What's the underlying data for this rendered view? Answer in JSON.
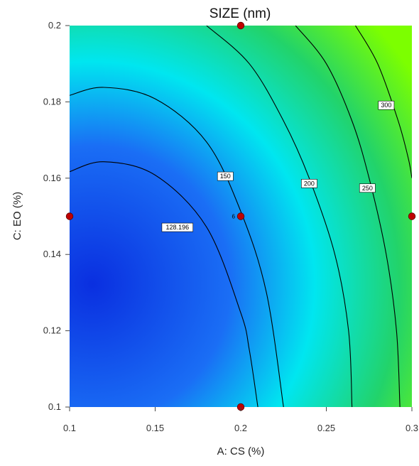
{
  "chart_data": {
    "type": "heatmap",
    "subtype": "contour",
    "title": "SIZE (nm)",
    "xlabel": "A: CS (%)",
    "ylabel": "C: EO (%)",
    "xlim": [
      0.1,
      0.3
    ],
    "ylim": [
      0.1,
      0.2
    ],
    "x_ticks": [
      "0.1",
      "0.15",
      "0.2",
      "0.25",
      "0.3"
    ],
    "y_ticks": [
      "0.1",
      "0.12",
      "0.14",
      "0.16",
      "0.18",
      "0.2"
    ],
    "colormap": [
      "#0a2fe0",
      "#1a6ef5",
      "#00e6f0",
      "#22d36a",
      "#7cff00"
    ],
    "contours": [
      {
        "level": 128.196,
        "label": "128.196",
        "points": [
          [
            0.1,
            0.1617
          ],
          [
            0.12,
            0.1643
          ],
          [
            0.15,
            0.1608
          ],
          [
            0.18,
            0.1472
          ],
          [
            0.2,
            0.1247
          ],
          [
            0.205,
            0.115
          ],
          [
            0.21,
            0.1
          ]
        ]
      },
      {
        "level": 150,
        "label": "150",
        "points": [
          [
            0.1,
            0.1817
          ],
          [
            0.12,
            0.1838
          ],
          [
            0.15,
            0.1808
          ],
          [
            0.18,
            0.1695
          ],
          [
            0.2,
            0.1513
          ],
          [
            0.215,
            0.13
          ],
          [
            0.225,
            0.1
          ]
        ]
      },
      {
        "level": 200,
        "label": "200",
        "points": [
          [
            0.18,
            0.2
          ],
          [
            0.205,
            0.19
          ],
          [
            0.225,
            0.175
          ],
          [
            0.24,
            0.16
          ],
          [
            0.255,
            0.14
          ],
          [
            0.263,
            0.12
          ],
          [
            0.265,
            0.1
          ]
        ]
      },
      {
        "level": 250,
        "label": "250",
        "points": [
          [
            0.232,
            0.2
          ],
          [
            0.25,
            0.19
          ],
          [
            0.265,
            0.175
          ],
          [
            0.275,
            0.16
          ],
          [
            0.285,
            0.14
          ],
          [
            0.291,
            0.12
          ],
          [
            0.293,
            0.1
          ]
        ]
      },
      {
        "level": 300,
        "label": "300",
        "points": [
          [
            0.267,
            0.2
          ],
          [
            0.28,
            0.19
          ],
          [
            0.292,
            0.175
          ],
          [
            0.298,
            0.165
          ],
          [
            0.3,
            0.16
          ]
        ]
      }
    ],
    "contour_labels": [
      {
        "text": "128.196",
        "x": 0.163,
        "y": 0.1471
      },
      {
        "text": "150",
        "x": 0.191,
        "y": 0.1605
      },
      {
        "text": "200",
        "x": 0.24,
        "y": 0.1586
      },
      {
        "text": "250",
        "x": 0.274,
        "y": 0.1574
      },
      {
        "text": "300",
        "x": 0.285,
        "y": 0.1791
      }
    ],
    "design_points": [
      {
        "x": 0.2,
        "y": 0.2
      },
      {
        "x": 0.1,
        "y": 0.15
      },
      {
        "x": 0.2,
        "y": 0.15
      },
      {
        "x": 0.3,
        "y": 0.15
      },
      {
        "x": 0.2,
        "y": 0.1
      }
    ],
    "replicate_label": {
      "text": "6",
      "x": 0.2,
      "y": 0.15
    },
    "point_color": "#c00000"
  }
}
